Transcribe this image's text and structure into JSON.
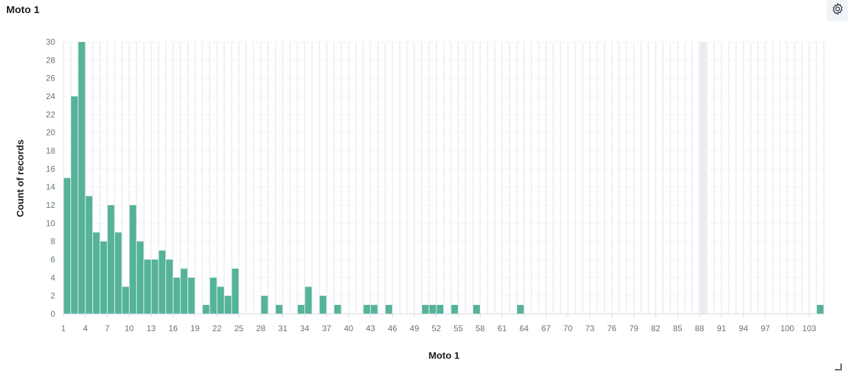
{
  "panel": {
    "title": "Moto 1",
    "settings_icon": "gear-icon"
  },
  "chart_data": {
    "type": "bar",
    "title": "Moto 1",
    "xlabel": "Moto 1",
    "ylabel": "Count of records",
    "ylim": [
      0,
      30
    ],
    "yticks": [
      0,
      2,
      4,
      6,
      8,
      10,
      12,
      14,
      16,
      18,
      20,
      22,
      24,
      26,
      28,
      30
    ],
    "xrange": [
      1,
      104
    ],
    "xticks": [
      1,
      4,
      7,
      10,
      13,
      16,
      19,
      22,
      25,
      28,
      31,
      34,
      37,
      40,
      43,
      46,
      49,
      52,
      55,
      58,
      61,
      64,
      67,
      70,
      73,
      76,
      79,
      82,
      85,
      88,
      91,
      94,
      97,
      100,
      103
    ],
    "highlight_x": 88,
    "bar_color": "#54b399",
    "grid": true,
    "categories": [
      1,
      2,
      3,
      4,
      5,
      6,
      7,
      8,
      9,
      10,
      11,
      12,
      13,
      14,
      15,
      16,
      17,
      18,
      20,
      21,
      22,
      23,
      24,
      28,
      30,
      33,
      34,
      36,
      38,
      42,
      43,
      45,
      50,
      51,
      52,
      54,
      57,
      63,
      104
    ],
    "values": [
      15,
      24,
      30,
      13,
      9,
      8,
      12,
      9,
      3,
      12,
      8,
      6,
      6,
      7,
      6,
      4,
      5,
      4,
      1,
      4,
      3,
      2,
      5,
      2,
      1,
      1,
      3,
      2,
      1,
      1,
      1,
      1,
      1,
      1,
      1,
      1,
      1,
      1,
      1
    ]
  }
}
